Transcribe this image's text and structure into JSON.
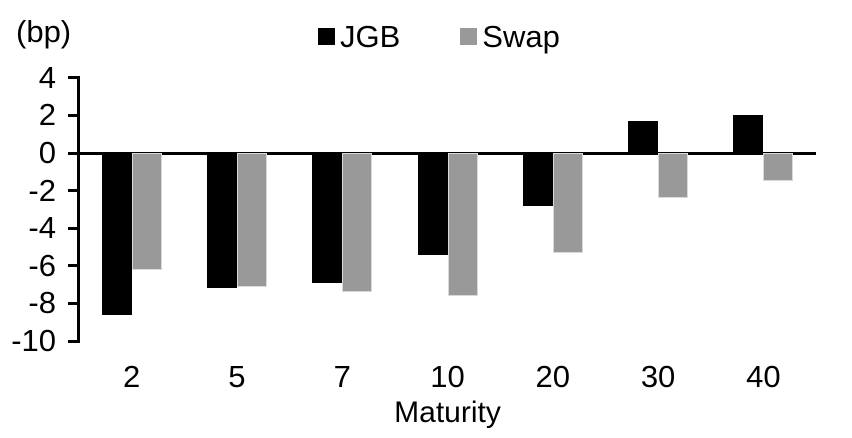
{
  "chart_data": {
    "type": "bar",
    "title": "",
    "unit_label": "(bp)",
    "xlabel": "Maturity",
    "ylabel": "",
    "categories": [
      "2",
      "5",
      "7",
      "10",
      "20",
      "30",
      "40"
    ],
    "series": [
      {
        "name": "JGB",
        "color": "#000000",
        "values": [
          -8.6,
          -7.2,
          -6.9,
          -5.4,
          -2.8,
          1.7,
          2.0
        ]
      },
      {
        "name": "Swap",
        "color": "#999999",
        "values": [
          -6.2,
          -7.1,
          -7.4,
          -7.6,
          -5.3,
          -2.4,
          -1.5
        ]
      }
    ],
    "y_ticks": [
      4,
      2,
      0,
      -2,
      -4,
      -6,
      -8,
      -10
    ],
    "ylim": [
      -10,
      4
    ],
    "grid": false,
    "legend_position": "top-center",
    "axis_color": "#000000",
    "background": "#ffffff"
  }
}
